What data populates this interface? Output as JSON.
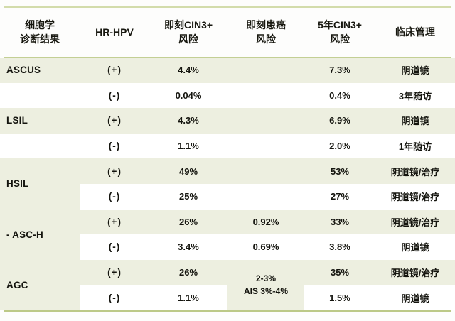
{
  "colors": {
    "row_band": "#edefe0",
    "rule_line": "#c3cf94",
    "text": "#14140e"
  },
  "table": {
    "columns": [
      {
        "line1": "细胞学",
        "line2": "诊断结果"
      },
      {
        "line1": "HR-HPV",
        "line2": ""
      },
      {
        "line1": "即刻CIN3+",
        "line2": "风险"
      },
      {
        "line1": "即刻患癌",
        "line2": "风险"
      },
      {
        "line1": "5年CIN3+",
        "line2": "风险"
      },
      {
        "line1": "临床管理",
        "line2": ""
      }
    ],
    "rows": [
      {
        "label": "ASCUS",
        "hpv": "(+)",
        "cin3": "4.4%",
        "cancer": "",
        "cin3_5y": "7.3%",
        "mgmt": "阴道镜"
      },
      {
        "label": "",
        "hpv": "(-)",
        "cin3": "0.04%",
        "cancer": "",
        "cin3_5y": "0.4%",
        "mgmt": "3年随访"
      },
      {
        "label": "LSIL",
        "hpv": "(+)",
        "cin3": "4.3%",
        "cancer": "",
        "cin3_5y": "6.9%",
        "mgmt": "阴道镜"
      },
      {
        "label": "",
        "hpv": "(-)",
        "cin3": "1.1%",
        "cancer": "",
        "cin3_5y": "2.0%",
        "mgmt": "1年随访"
      },
      {
        "label": "HSIL",
        "hpv": "(+)",
        "cin3": "49%",
        "cancer": "",
        "cin3_5y": "53%",
        "mgmt": "阴道镜/治疗"
      },
      {
        "label": "",
        "hpv": "(-)",
        "cin3": "25%",
        "cancer": "",
        "cin3_5y": "27%",
        "mgmt": "阴道镜/治疗"
      },
      {
        "label": "- ASC-H",
        "hpv": "(+)",
        "cin3": "26%",
        "cancer": "0.92%",
        "cin3_5y": "33%",
        "mgmt": "阴道镜/治疗"
      },
      {
        "label": "",
        "hpv": "(-)",
        "cin3": "3.4%",
        "cancer": "0.69%",
        "cin3_5y": "3.8%",
        "mgmt": "阴道镜"
      },
      {
        "label": "AGC",
        "hpv": "(+)",
        "cin3": "26%",
        "cancer_line1": "2-3%",
        "cancer_line2": "AIS 3%-4%",
        "cin3_5y": "35%",
        "mgmt": "阴道镜/治疗"
      },
      {
        "label": "",
        "hpv": "(-)",
        "cin3": "1.1%",
        "cancer": "",
        "cin3_5y": "1.5%",
        "mgmt": "阴道镜"
      }
    ]
  },
  "chart_data": {
    "type": "table",
    "title": "",
    "columns": [
      "细胞学诊断结果",
      "HR-HPV",
      "即刻CIN3+风险",
      "即刻患癌风险",
      "5年CIN3+风险",
      "临床管理"
    ],
    "rows": [
      [
        "ASCUS",
        "(+)",
        "4.4%",
        "",
        "7.3%",
        "阴道镜"
      ],
      [
        "",
        "(-)",
        "0.04%",
        "",
        "0.4%",
        "3年随访"
      ],
      [
        "LSIL",
        "(+)",
        "4.3%",
        "",
        "6.9%",
        "阴道镜"
      ],
      [
        "",
        "(-)",
        "1.1%",
        "",
        "2.0%",
        "1年随访"
      ],
      [
        "HSIL",
        "(+)",
        "49%",
        "",
        "53%",
        "阴道镜/治疗"
      ],
      [
        "",
        "(-)",
        "25%",
        "",
        "27%",
        "阴道镜/治疗"
      ],
      [
        "- ASC-H",
        "(+)",
        "26%",
        "0.92%",
        "33%",
        "阴道镜/治疗"
      ],
      [
        "",
        "(-)",
        "3.4%",
        "0.69%",
        "3.8%",
        "阴道镜"
      ],
      [
        "AGC",
        "(+)",
        "26%",
        "2-3% AIS 3%-4%",
        "35%",
        "阴道镜/治疗"
      ],
      [
        "",
        "(-)",
        "1.1%",
        "",
        "1.5%",
        "阴道镜"
      ]
    ],
    "merged_cells": [
      {
        "label": "HSIL",
        "column": 0,
        "rows": [
          4,
          5
        ]
      },
      {
        "label": "- ASC-H",
        "column": 0,
        "rows": [
          6,
          7
        ]
      },
      {
        "label": "AGC",
        "column": 0,
        "rows": [
          8,
          9
        ]
      },
      {
        "label": "2-3% AIS 3%-4%",
        "column": 3,
        "rows": [
          8,
          9
        ]
      }
    ],
    "layout": {
      "banding": "plus-rows shaded pale olive",
      "grid": "off"
    }
  }
}
